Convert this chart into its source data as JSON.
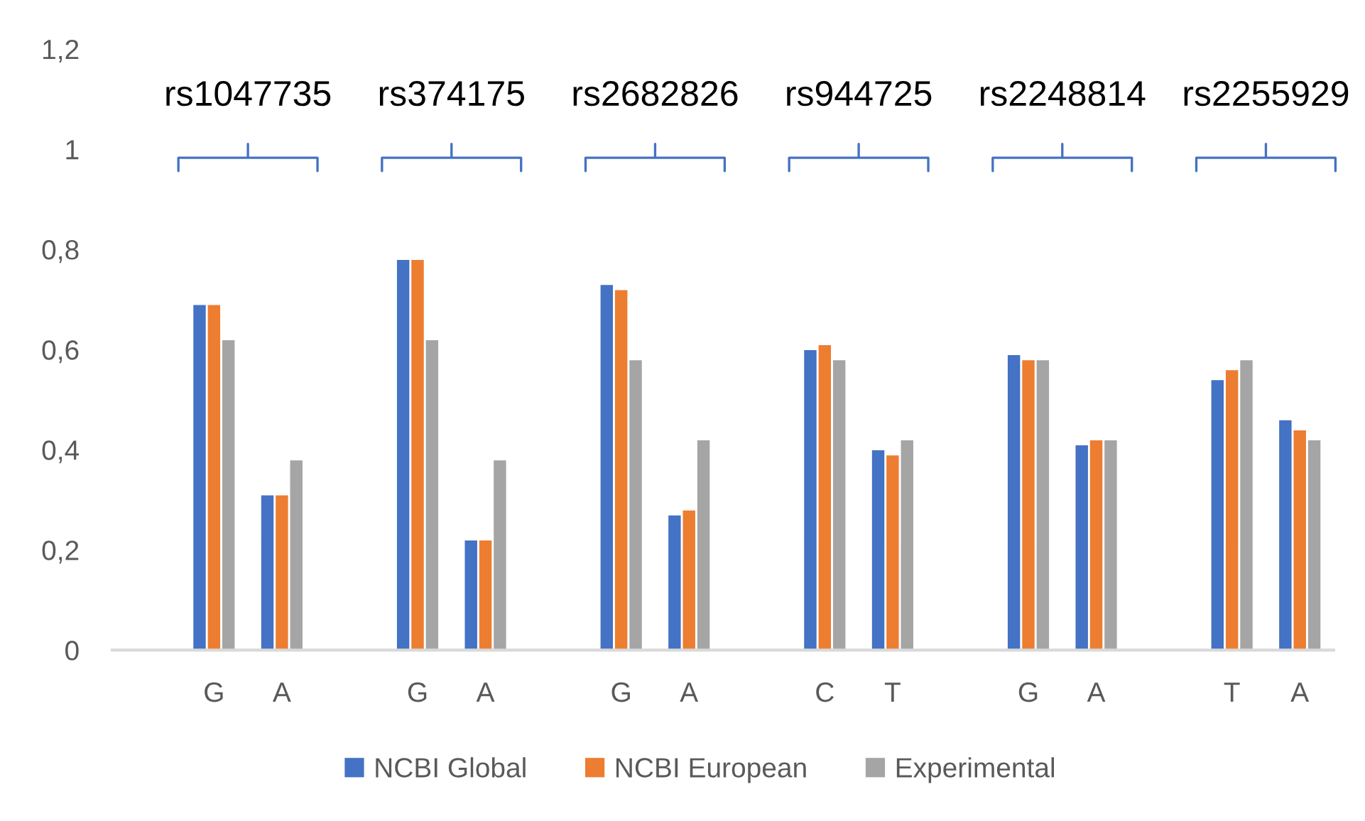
{
  "chart_data": {
    "type": "bar",
    "categories": [
      null,
      "G",
      "A",
      null,
      "G",
      "A",
      null,
      "G",
      "A",
      null,
      "C",
      "T",
      null,
      "G",
      "A",
      null,
      "T",
      "A"
    ],
    "series": [
      {
        "name": "NCBI Global",
        "color": "#4472c4",
        "values": [
          null,
          0.69,
          0.31,
          null,
          0.78,
          0.22,
          null,
          0.73,
          0.27,
          null,
          0.6,
          0.4,
          null,
          0.59,
          0.41,
          null,
          0.54,
          0.46
        ]
      },
      {
        "name": "NCBI European",
        "color": "#ed7d31",
        "values": [
          null,
          0.69,
          0.31,
          null,
          0.78,
          0.22,
          null,
          0.72,
          0.28,
          null,
          0.61,
          0.39,
          null,
          0.58,
          0.42,
          null,
          0.56,
          0.44
        ]
      },
      {
        "name": "Experimental",
        "color": "#a5a5a5",
        "values": [
          null,
          0.62,
          0.38,
          null,
          0.62,
          0.38,
          null,
          0.58,
          0.42,
          null,
          0.58,
          0.42,
          null,
          0.58,
          0.42,
          null,
          0.58,
          0.42
        ]
      }
    ],
    "ylim": [
      0,
      1.2
    ],
    "yticks": [
      0,
      {
        "value": 0.2,
        "label": "0,2"
      },
      {
        "value": 0.4,
        "label": "0,4"
      },
      {
        "value": 0.6,
        "label": "0,6"
      },
      {
        "value": 0.8,
        "label": "0,8"
      },
      1,
      {
        "value": 1.2,
        "label": "1,2"
      }
    ],
    "annotations": [
      "rs1047735",
      "rs374175",
      "rs2682826",
      "rs944725",
      "rs2248814",
      "rs2255929"
    ],
    "legend": "bottom"
  }
}
